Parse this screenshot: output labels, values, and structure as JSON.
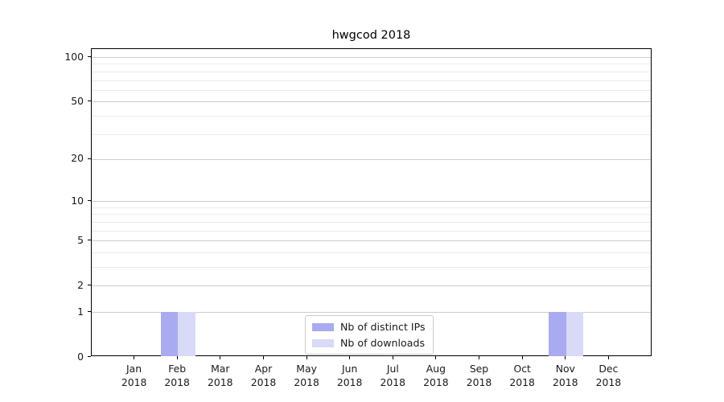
{
  "chart_data": {
    "type": "bar",
    "title": "hwgcod 2018",
    "categories": [
      "Jan 2018",
      "Feb 2018",
      "Mar 2018",
      "Apr 2018",
      "May 2018",
      "Jun 2018",
      "Jul 2018",
      "Aug 2018",
      "Sep 2018",
      "Oct 2018",
      "Nov 2018",
      "Dec 2018"
    ],
    "series": [
      {
        "name": "Nb of distinct IPs",
        "color": "#aaaaf0",
        "values": [
          0,
          1,
          0,
          0,
          0,
          0,
          0,
          0,
          0,
          0,
          1,
          0
        ]
      },
      {
        "name": "Nb of downloads",
        "color": "#d9d9f8",
        "values": [
          0,
          1,
          0,
          0,
          0,
          0,
          0,
          0,
          0,
          0,
          1,
          0
        ]
      }
    ],
    "xlabel": "",
    "ylabel": "",
    "yscale": "log1p",
    "ylim": [
      0,
      113
    ],
    "y_major_ticks": [
      100,
      50,
      20,
      10,
      5,
      2,
      1,
      0
    ],
    "y_minor_ticks": [
      90,
      80,
      70,
      60,
      40,
      30,
      9,
      8,
      7,
      6,
      4,
      3
    ],
    "grid": true,
    "legend_position": "lower center inside",
    "colors": {
      "major_grid": "#cccccc",
      "minor_grid": "#ebebeb",
      "axis": "#000000",
      "text": "#1a1a1a"
    }
  }
}
